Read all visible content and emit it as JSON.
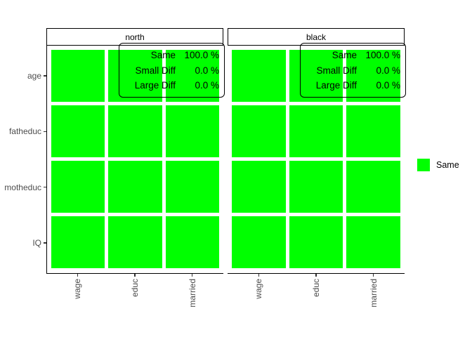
{
  "chart_data": {
    "type": "heatmap",
    "title": "",
    "xlabel": "",
    "ylabel": "",
    "x_categories": [
      "wage",
      "educ",
      "married"
    ],
    "y_categories": [
      "age",
      "fatheduc",
      "motheduc",
      "IQ"
    ],
    "tile_color": "#00FF00",
    "facets": [
      {
        "title": "north",
        "values": [
          [
            "Same",
            "Same",
            "Same"
          ],
          [
            "Same",
            "Same",
            "Same"
          ],
          [
            "Same",
            "Same",
            "Same"
          ],
          [
            "Same",
            "Same",
            "Same"
          ]
        ],
        "annotation": [
          {
            "label": "Same",
            "value": "100.0 %"
          },
          {
            "label": "Small Diff",
            "value": "0.0 %"
          },
          {
            "label": "Large Diff",
            "value": "0.0 %"
          }
        ]
      },
      {
        "title": "black",
        "values": [
          [
            "Same",
            "Same",
            "Same"
          ],
          [
            "Same",
            "Same",
            "Same"
          ],
          [
            "Same",
            "Same",
            "Same"
          ],
          [
            "Same",
            "Same",
            "Same"
          ]
        ],
        "annotation": [
          {
            "label": "Same",
            "value": "100.0 %"
          },
          {
            "label": "Small Diff",
            "value": "0.0 %"
          },
          {
            "label": "Large Diff",
            "value": "0.0 %"
          }
        ]
      }
    ],
    "legend": {
      "position": "right",
      "items": [
        {
          "label": "Same",
          "color": "#00FF00"
        }
      ]
    }
  }
}
